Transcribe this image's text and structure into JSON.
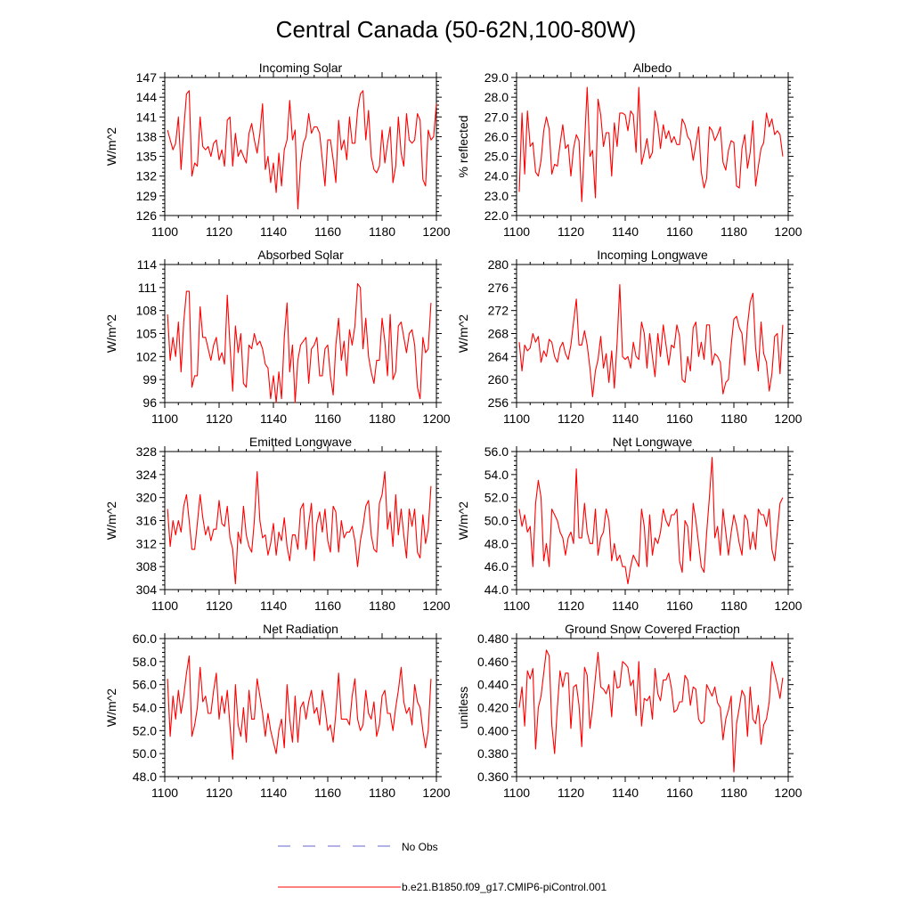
{
  "figure": {
    "title": "Central Canada (50-62N,100-80W)",
    "series_color": "#ff0000",
    "obs_color": "#6666cc"
  },
  "legend": {
    "obs_label": "No Obs",
    "model_label": "b.e21.B1850.f09_g17.CMIP6-piControl.001"
  },
  "chart_data": [
    {
      "type": "line",
      "title": "Incoming Solar",
      "xlabel": "",
      "ylabel": "W/m^2",
      "xlim": [
        1100,
        1200
      ],
      "ylim": [
        126,
        147
      ],
      "xticks": [
        1100,
        1120,
        1140,
        1160,
        1180,
        1200
      ],
      "yticks": [
        126,
        129,
        132,
        135,
        138,
        141,
        144,
        147
      ],
      "tick_labels": [
        "126",
        "129",
        "132",
        "135",
        "138",
        "141",
        "144",
        "147"
      ],
      "x_start": 1101,
      "x_step": 1,
      "values": [
        139,
        137.5,
        136,
        137,
        141,
        133,
        139,
        144.5,
        145,
        132,
        134,
        133.5,
        141,
        136.5,
        136,
        136.5,
        135,
        137,
        137.5,
        134.5,
        136,
        133.5,
        140.5,
        141,
        133.5,
        138.5,
        135,
        136,
        135,
        134,
        138.5,
        140,
        137.5,
        135.5,
        138.5,
        143,
        133,
        135,
        131,
        134,
        129.5,
        135.5,
        130.5,
        136,
        137.5,
        143.5,
        137.5,
        139,
        127,
        134,
        137,
        138,
        141.5,
        138.5,
        139.5,
        139.5,
        138.5,
        134.5,
        130.5,
        137.5,
        137.5,
        134.5,
        131,
        140.5,
        136,
        137.5,
        134.5,
        141,
        137,
        137,
        142,
        144.5,
        145,
        137.5,
        142,
        135,
        133,
        132.5,
        133.5,
        139,
        134,
        137,
        139.5,
        131,
        133.5,
        141,
        135.5,
        133.5,
        141.5,
        137.5,
        137,
        137.5,
        141.5,
        140.5,
        131.5,
        130.5,
        139,
        137.5,
        138,
        143
      ]
    },
    {
      "type": "line",
      "title": "Albedo",
      "xlabel": "",
      "ylabel": "% reflected",
      "xlim": [
        1100,
        1200
      ],
      "ylim": [
        22,
        29
      ],
      "xticks": [
        1100,
        1120,
        1140,
        1160,
        1180,
        1200
      ],
      "yticks": [
        22,
        23,
        24,
        25,
        26,
        27,
        28,
        29
      ],
      "tick_labels": [
        "22.0",
        "23.0",
        "24.0",
        "25.0",
        "26.0",
        "27.0",
        "28.0",
        "29.0"
      ],
      "x_start": 1101,
      "x_step": 1,
      "values": [
        23.2,
        27.2,
        24.1,
        27.3,
        25.5,
        25.7,
        24.2,
        24,
        24.8,
        26.3,
        27,
        26.4,
        24.1,
        24.6,
        24.5,
        25.6,
        26.6,
        25.4,
        25.6,
        24,
        25.4,
        26.1,
        25.8,
        22.7,
        25.6,
        28.5,
        25,
        25.3,
        22.9,
        27.9,
        27.1,
        25.5,
        26.2,
        26.2,
        24,
        26.7,
        25.5,
        27.2,
        27.2,
        27.1,
        26.3,
        27.3,
        27.1,
        25.2,
        28.5,
        24.6,
        25.2,
        25.9,
        24.9,
        25.2,
        27.3,
        26.6,
        25.4,
        26.6,
        25.9,
        26.3,
        25.7,
        26,
        25.6,
        25.6,
        26.9,
        26.6,
        26,
        25.8,
        24.8,
        25.6,
        26.5,
        24.2,
        23.4,
        23.9,
        26.5,
        26.3,
        25.8,
        26.1,
        26.5,
        24.7,
        24.3,
        25.3,
        25.8,
        25.7,
        23.5,
        23.4,
        25.4,
        26.1,
        24.4,
        25.2,
        26.8,
        23.5,
        24.5,
        25.4,
        25.7,
        27.2,
        26.5,
        26.9,
        26.1,
        26.3,
        26.1,
        25
      ]
    },
    {
      "type": "line",
      "title": "Absorbed Solar",
      "xlabel": "",
      "ylabel": "W/m^2",
      "xlim": [
        1100,
        1200
      ],
      "ylim": [
        96,
        114
      ],
      "xticks": [
        1100,
        1120,
        1140,
        1160,
        1180,
        1200
      ],
      "yticks": [
        96,
        99,
        102,
        105,
        108,
        111,
        114
      ],
      "tick_labels": [
        "96",
        "99",
        "102",
        "105",
        "108",
        "111",
        "114"
      ],
      "x_start": 1101,
      "x_step": 1,
      "values": [
        107.5,
        101.5,
        104.5,
        102,
        106.5,
        100,
        106.5,
        110.5,
        110.5,
        98,
        99.5,
        99.5,
        108.5,
        104.5,
        104.5,
        103,
        101.5,
        103.5,
        104.5,
        101.5,
        102.5,
        101,
        110,
        103.5,
        97.5,
        106,
        102.5,
        105,
        98.5,
        98,
        103.5,
        103,
        105,
        103.5,
        104,
        103,
        101,
        100.5,
        96.5,
        99.5,
        96,
        100,
        96.5,
        104.5,
        109,
        100,
        103.5,
        96,
        101.5,
        103.5,
        104,
        104.5,
        98.5,
        103,
        103.5,
        104.5,
        99.5,
        99.5,
        103,
        103.5,
        99.5,
        97,
        103.5,
        107,
        101.5,
        104,
        99.5,
        105.5,
        103.5,
        106,
        111.5,
        111,
        103,
        107,
        102,
        100,
        98.5,
        101.5,
        101.5,
        107,
        104,
        99.5,
        107.5,
        99,
        100,
        106,
        106.5,
        104.5,
        102.5,
        105,
        105.5,
        103.5,
        98,
        96.5,
        104.5,
        102.5,
        103,
        109
      ]
    },
    {
      "type": "line",
      "title": "Incoming Longwave",
      "xlabel": "",
      "ylabel": "W/m^2",
      "xlim": [
        1100,
        1200
      ],
      "ylim": [
        256,
        280
      ],
      "xticks": [
        1100,
        1120,
        1140,
        1160,
        1180,
        1200
      ],
      "yticks": [
        256,
        260,
        264,
        268,
        272,
        276,
        280
      ],
      "tick_labels": [
        "256",
        "260",
        "264",
        "268",
        "272",
        "276",
        "280"
      ],
      "x_start": 1101,
      "x_step": 1,
      "values": [
        266.5,
        261.5,
        266,
        265,
        265.5,
        268,
        266.5,
        267.5,
        263,
        265,
        264,
        267,
        266.5,
        264,
        263,
        265.5,
        266.5,
        264.5,
        263.5,
        266,
        270,
        274,
        266,
        266,
        268.5,
        266,
        262,
        257,
        261.5,
        263.5,
        267.5,
        262,
        264.5,
        259.5,
        265,
        258.5,
        266.5,
        276.5,
        264,
        263.5,
        264,
        262,
        266.5,
        264,
        263.5,
        270,
        268,
        262,
        268,
        264,
        260.5,
        268,
        264,
        269.5,
        266,
        262.5,
        266,
        265.5,
        269.5,
        267.5,
        260,
        259.5,
        264,
        261.5,
        269,
        270,
        264,
        266.5,
        263.5,
        269.5,
        269.5,
        262.5,
        264.5,
        264,
        263,
        257.5,
        259.5,
        260,
        266,
        270.5,
        271,
        269,
        268,
        262.5,
        269.5,
        273.5,
        275,
        265.5,
        261.5,
        270,
        264.5,
        263,
        258,
        261,
        267.5,
        268,
        261,
        269.5
      ]
    },
    {
      "type": "line",
      "title": "Emitted Longwave",
      "xlabel": "",
      "ylabel": "W/m^2",
      "xlim": [
        1100,
        1200
      ],
      "ylim": [
        304,
        328
      ],
      "xticks": [
        1100,
        1120,
        1140,
        1160,
        1180,
        1200
      ],
      "yticks": [
        304,
        308,
        312,
        316,
        320,
        324,
        328
      ],
      "tick_labels": [
        "304",
        "308",
        "312",
        "316",
        "320",
        "324",
        "328"
      ],
      "x_start": 1101,
      "x_step": 1,
      "values": [
        318,
        311.5,
        316,
        313.5,
        316,
        314,
        318.5,
        320.5,
        316,
        311,
        311,
        315.5,
        320.5,
        316.5,
        313.5,
        315,
        312.5,
        314.5,
        314.5,
        319.5,
        315.5,
        315,
        318.5,
        313,
        311,
        305,
        314,
        312,
        318.5,
        313.5,
        311.5,
        310.5,
        316,
        324.5,
        316,
        313,
        313.5,
        310,
        312,
        315.5,
        310,
        314,
        312.5,
        316.5,
        311.5,
        309,
        313.5,
        313.5,
        311,
        318,
        319,
        311,
        315.5,
        319,
        309,
        315.5,
        317.5,
        314,
        318,
        312.5,
        310.5,
        318.5,
        317.5,
        310.5,
        316,
        313,
        314,
        314,
        315,
        312.5,
        308,
        312.5,
        315,
        318.5,
        319.5,
        313.5,
        311,
        310.5,
        319,
        320.5,
        324.5,
        314.5,
        317.5,
        311.5,
        320.5,
        313.5,
        318,
        313.5,
        309.5,
        318,
        315,
        318,
        310.5,
        309.5,
        317,
        312,
        314.5,
        322
      ]
    },
    {
      "type": "line",
      "title": "Net Longwave",
      "xlabel": "",
      "ylabel": "W/m^2",
      "xlim": [
        1100,
        1200
      ],
      "ylim": [
        44,
        56
      ],
      "xticks": [
        1100,
        1120,
        1140,
        1160,
        1180,
        1200
      ],
      "yticks": [
        44,
        46,
        48,
        50,
        52,
        54,
        56
      ],
      "tick_labels": [
        "44.0",
        "46.0",
        "48.0",
        "50.0",
        "52.0",
        "54.0",
        "56.0"
      ],
      "x_start": 1101,
      "x_step": 1,
      "values": [
        51,
        49.5,
        50.5,
        49,
        49.5,
        46,
        51.5,
        53.5,
        52,
        46.5,
        48,
        46,
        51,
        50.5,
        50,
        49,
        48.5,
        47,
        48.5,
        49,
        48,
        54.5,
        48.5,
        48.5,
        51.5,
        49,
        48,
        48,
        51,
        47,
        48.5,
        49,
        51,
        50,
        46.5,
        48,
        46.5,
        47,
        46,
        46,
        44.5,
        46,
        47,
        46.5,
        46,
        51,
        49.5,
        46,
        50.5,
        47,
        48.5,
        48,
        49,
        51,
        50,
        49.5,
        50.5,
        50.5,
        51,
        46.5,
        45.5,
        50,
        49.5,
        46.5,
        51.5,
        50,
        48,
        46,
        45.5,
        49,
        52,
        55.5,
        48.5,
        49.5,
        47,
        51,
        49,
        47,
        49,
        50.5,
        49.5,
        48,
        47,
        50.5,
        50,
        47.5,
        49,
        47.5,
        51,
        50.5,
        50.5,
        49.5,
        51,
        47.5,
        46.5,
        49,
        51.5,
        52
      ]
    },
    {
      "type": "line",
      "title": "Net Radiation",
      "xlabel": "",
      "ylabel": "W/m^2",
      "xlim": [
        1100,
        1200
      ],
      "ylim": [
        48,
        60
      ],
      "xticks": [
        1100,
        1120,
        1140,
        1160,
        1180,
        1200
      ],
      "yticks": [
        48,
        50,
        52,
        54,
        56,
        58,
        60
      ],
      "tick_labels": [
        "48.0",
        "50.0",
        "52.0",
        "54.0",
        "56.0",
        "58.0",
        "60.0"
      ],
      "x_start": 1101,
      "x_step": 1,
      "values": [
        56.5,
        51.5,
        55,
        53,
        55.5,
        53.5,
        55,
        57,
        58.5,
        51.5,
        52.5,
        54,
        57.5,
        54.5,
        55,
        53.5,
        53.5,
        55.5,
        57,
        53,
        55,
        53.5,
        55.5,
        52.5,
        49.5,
        56,
        52.5,
        51.5,
        54,
        51,
        55.5,
        53,
        53,
        56.5,
        55,
        53.5,
        51.5,
        53.5,
        52,
        51,
        50,
        52,
        53,
        50.5,
        56,
        53,
        51,
        55,
        51,
        54,
        54.5,
        53,
        54.5,
        55.5,
        53.5,
        54,
        52.5,
        55.5,
        54,
        52,
        52.5,
        51,
        53.5,
        57,
        53,
        53,
        53,
        52.5,
        55,
        56.5,
        53,
        52,
        52.5,
        55.5,
        53.5,
        53,
        54.5,
        51.5,
        52.5,
        55,
        55.5,
        53.5,
        53.5,
        52,
        54,
        55.5,
        57.5,
        54.5,
        53.5,
        54,
        52.5,
        56,
        54.5,
        54,
        52,
        50.5,
        52,
        56.5
      ]
    },
    {
      "type": "line",
      "title": "Ground Snow Covered Fraction",
      "xlabel": "",
      "ylabel": "unitless",
      "xlim": [
        1100,
        1200
      ],
      "ylim": [
        0.36,
        0.48
      ],
      "xticks": [
        1100,
        1120,
        1140,
        1160,
        1180,
        1200
      ],
      "yticks": [
        0.36,
        0.38,
        0.4,
        0.42,
        0.44,
        0.46,
        0.48
      ],
      "tick_labels": [
        "0.360",
        "0.380",
        "0.400",
        "0.420",
        "0.440",
        "0.460",
        "0.480"
      ],
      "x_start": 1101,
      "x_step": 1,
      "values": [
        0.42,
        0.438,
        0.404,
        0.452,
        0.445,
        0.454,
        0.384,
        0.42,
        0.43,
        0.45,
        0.47,
        0.465,
        0.405,
        0.38,
        0.42,
        0.452,
        0.438,
        0.45,
        0.45,
        0.402,
        0.438,
        0.44,
        0.422,
        0.386,
        0.455,
        0.448,
        0.402,
        0.42,
        0.446,
        0.468,
        0.438,
        0.436,
        0.432,
        0.44,
        0.412,
        0.452,
        0.437,
        0.438,
        0.46,
        0.458,
        0.455,
        0.439,
        0.444,
        0.413,
        0.46,
        0.404,
        0.428,
        0.426,
        0.43,
        0.41,
        0.454,
        0.432,
        0.426,
        0.444,
        0.444,
        0.45,
        0.437,
        0.416,
        0.418,
        0.425,
        0.425,
        0.448,
        0.444,
        0.422,
        0.438,
        0.436,
        0.41,
        0.406,
        0.408,
        0.44,
        0.435,
        0.43,
        0.438,
        0.424,
        0.42,
        0.392,
        0.41,
        0.418,
        0.43,
        0.364,
        0.406,
        0.42,
        0.435,
        0.43,
        0.395,
        0.438,
        0.41,
        0.406,
        0.422,
        0.388,
        0.405,
        0.41,
        0.425,
        0.46,
        0.45,
        0.44,
        0.428,
        0.446
      ]
    }
  ]
}
